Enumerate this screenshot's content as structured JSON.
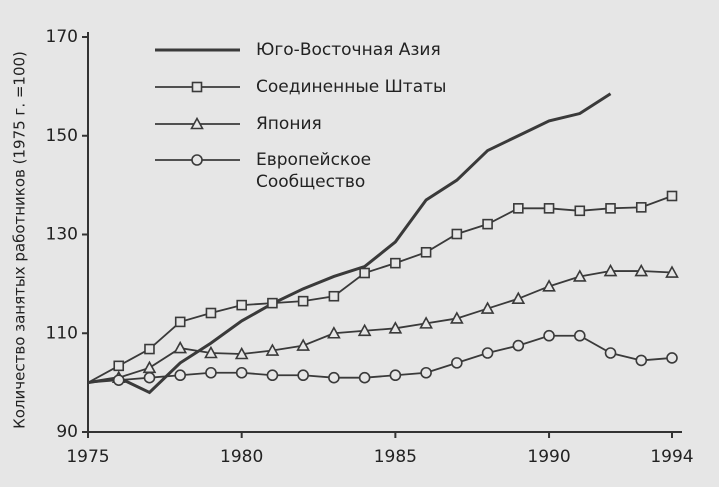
{
  "chart_data": {
    "type": "line",
    "y_label": "Количество занятых работников (1975 г. =100)",
    "x": [
      1975,
      1976,
      1977,
      1978,
      1979,
      1980,
      1981,
      1982,
      1983,
      1984,
      1985,
      1986,
      1987,
      1988,
      1989,
      1990,
      1991,
      1992,
      1993,
      1994
    ],
    "xlim": [
      1975,
      1994
    ],
    "xticks": [
      1975,
      1980,
      1985,
      1990,
      1994
    ],
    "ylim": [
      90,
      170
    ],
    "yticks": [
      90,
      110,
      130,
      150,
      170
    ],
    "series": [
      {
        "name": "Юго-Восточная Азия",
        "color": "#3a3a3a",
        "marker": "none",
        "values": [
          100,
          101,
          98,
          104,
          108,
          112.5,
          116,
          119,
          121.5,
          123.5,
          128.5,
          137,
          141,
          147,
          150,
          153,
          154.5,
          158.5,
          null,
          null
        ]
      },
      {
        "name": "Соединенные Штаты",
        "color": "#3a3a3a",
        "marker": "square",
        "values": [
          100,
          103.4,
          106.8,
          112.3,
          114.1,
          115.7,
          116.1,
          116.5,
          117.5,
          122.2,
          124.2,
          126.4,
          130.1,
          132.1,
          135.3,
          135.3,
          134.8,
          135.3,
          135.5,
          137.8
        ]
      },
      {
        "name": "Япония",
        "color": "#3a3a3a",
        "marker": "triangle",
        "values": [
          100,
          101,
          103,
          107,
          106,
          105.8,
          106.5,
          107.5,
          110,
          110.5,
          111,
          112,
          113,
          115,
          117,
          119.5,
          121.5,
          122.6,
          122.6,
          122.3
        ]
      },
      {
        "name": "Европейское Сообщество",
        "color": "#3a3a3a",
        "marker": "circle",
        "values": [
          100,
          100.5,
          101,
          101.5,
          102,
          102,
          101.5,
          101.5,
          101,
          101,
          101.5,
          102,
          104,
          106,
          107.5,
          109.5,
          109.5,
          106,
          104.5,
          105
        ]
      }
    ]
  }
}
